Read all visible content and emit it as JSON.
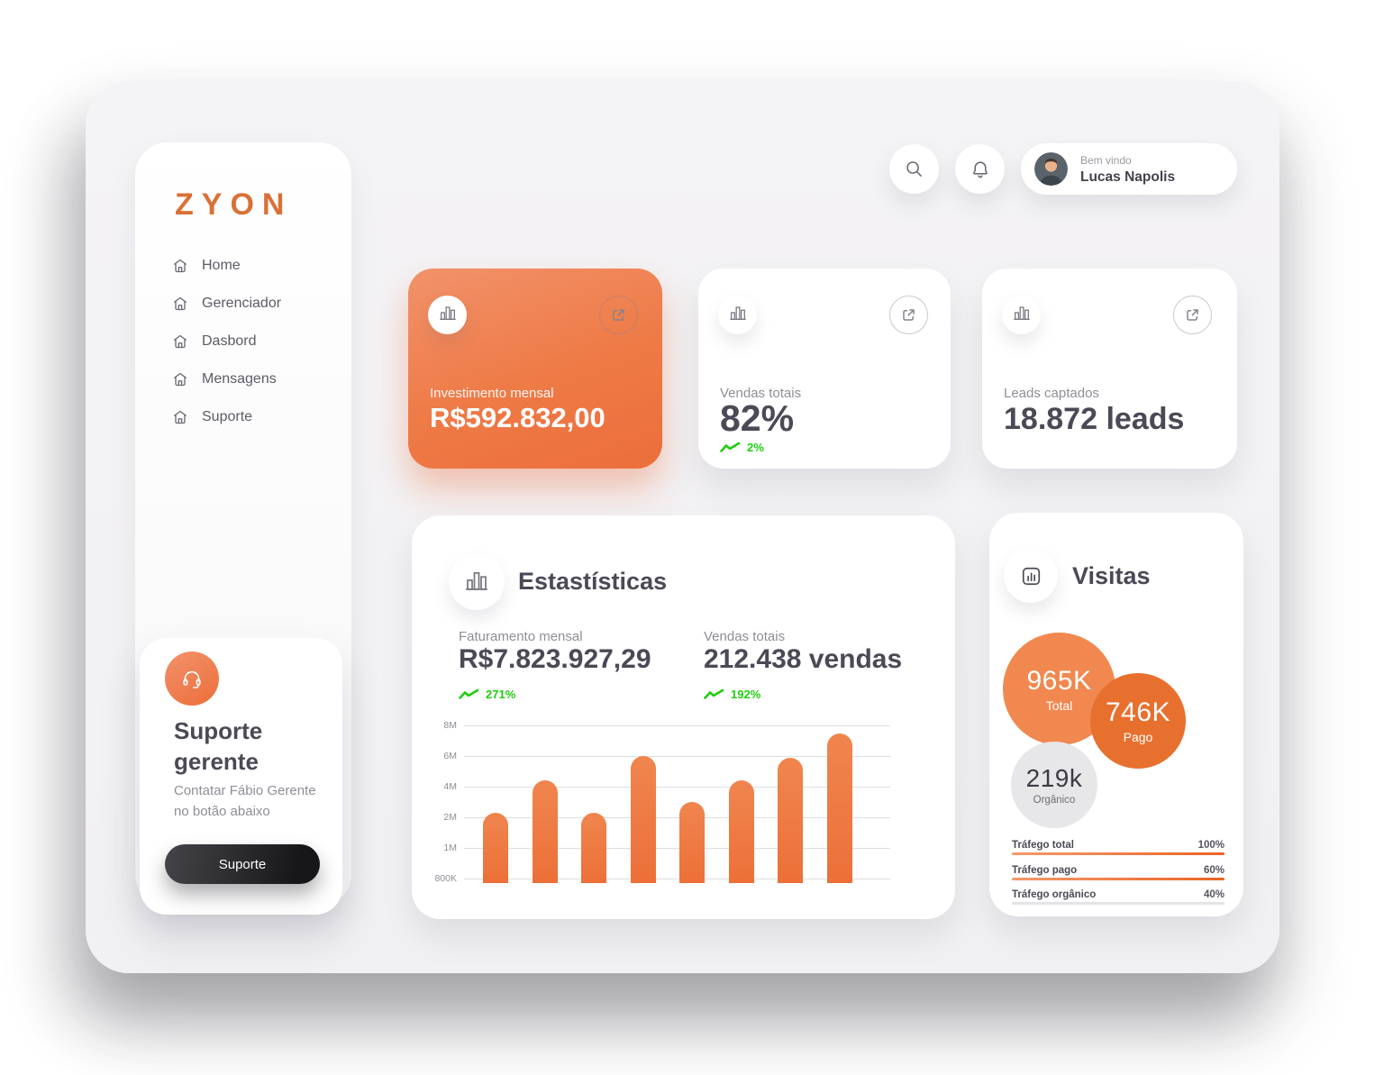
{
  "brand": {
    "logo": "ZYON",
    "logo_color": "#DB7036"
  },
  "header": {
    "welcome": "Bem vindo",
    "user_name": "Lucas Napolis"
  },
  "sidebar": {
    "items": [
      "Home",
      "Gerenciador",
      "Dasbord",
      "Mensagens",
      "Suporte"
    ]
  },
  "support_card": {
    "title": "Suporte gerente",
    "description": "Contatar Fábio Gerente no botão abaixo",
    "button_label": "Suporte"
  },
  "stat_cards": [
    {
      "label": "Investimento mensal",
      "value": "R$592.832,00",
      "variant": "orange"
    },
    {
      "label": "Vendas totais",
      "value": "82%",
      "trend": "2%",
      "variant": "white"
    },
    {
      "label": "Leads captados",
      "value": "18.872 leads",
      "variant": "white"
    }
  ],
  "statistics_card": {
    "title": "Estastísticas",
    "metrics": [
      {
        "label": "Faturamento mensal",
        "value": "R$7.823.927,29",
        "trend": "271%"
      },
      {
        "label": "Vendas totais",
        "value": "212.438 vendas",
        "trend": "192%"
      }
    ]
  },
  "visits_card": {
    "title": "Visitas"
  },
  "chart_data": [
    {
      "type": "bar",
      "title": "Estastísticas",
      "y_tick_labels": [
        "8M",
        "6M",
        "4M",
        "2M",
        "1M",
        "800K"
      ],
      "y_scale_millions": [
        0.8,
        1,
        2,
        4,
        6,
        8
      ],
      "values_millions": [
        2.3,
        4.4,
        2.3,
        6.0,
        3.0,
        4.4,
        5.9,
        7.5
      ],
      "bar_color": "#EE7B42",
      "grid": true,
      "legend": false
    },
    {
      "type": "bubble",
      "title": "Visitas",
      "points": [
        {
          "label": "Total",
          "value": "965K",
          "color": "#F1884F",
          "text_color": "#FFFFFF"
        },
        {
          "label": "Pago",
          "value": "746K",
          "color": "#E8702F",
          "text_color": "#FFFFFF"
        },
        {
          "label": "Orgânico",
          "value": "219k",
          "color": "#E7E6E8",
          "text_color": "#3E3B45"
        }
      ]
    },
    {
      "type": "progress",
      "rows": [
        {
          "label": "Tráfego total",
          "value": "100%",
          "color": "orange"
        },
        {
          "label": "Tráfego pago",
          "value": "60%",
          "color": "orange"
        },
        {
          "label": "Tráfego orgânico",
          "value": "40%",
          "color": "gray"
        }
      ]
    }
  ],
  "colors": {
    "accent_orange": "#EC6E3A",
    "green": "#1FCE0D"
  }
}
